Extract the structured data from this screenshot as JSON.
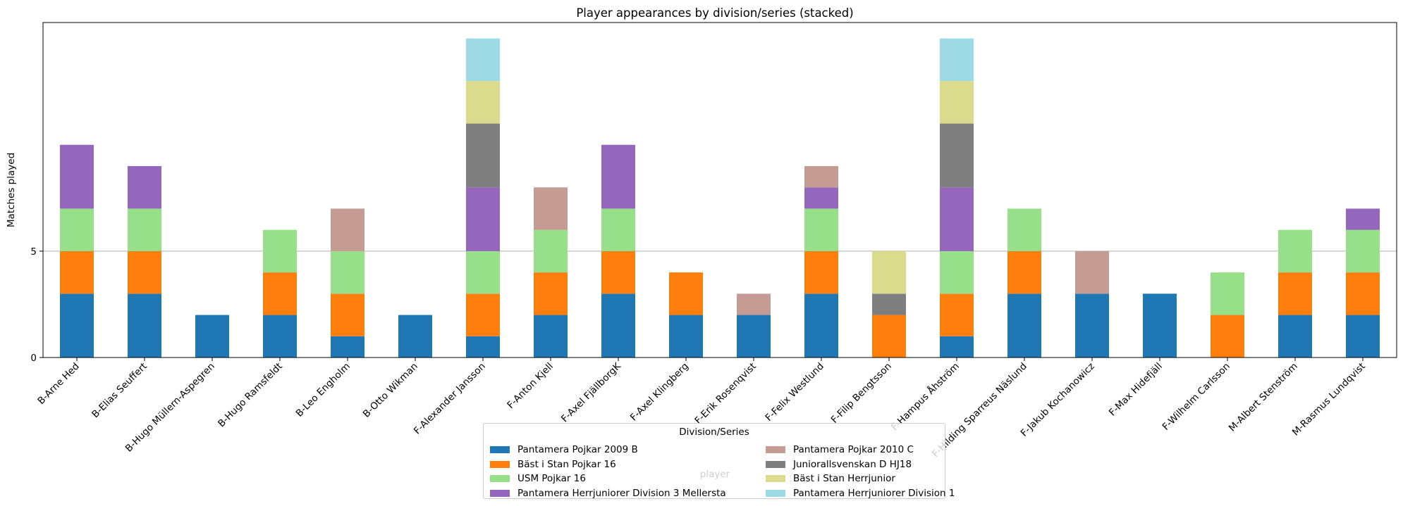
{
  "chart_data": {
    "type": "bar",
    "stacked": true,
    "title": "Player appearances by division/series (stacked)",
    "xlabel": "player",
    "ylabel": "Matches played",
    "ylim": [
      0,
      15.75
    ],
    "yticks": [
      0,
      5
    ],
    "grid": "y",
    "categories": [
      "B-Arne Hed",
      "B-Elias Seuffert",
      "B-Hugo Müllern-Aspegren",
      "B-Hugo Ramsfeldt",
      "B-Leo Engholm",
      "B-Otto Wikman",
      "F-Alexander Jansson",
      "F-Anton Kjell",
      "F-Axel FjällborgK",
      "F-Axel Klingberg",
      "F-Erik Rosenqvist",
      "F-Felix Westlund",
      "F-Filip Bengtsson",
      "F-Hampus Åhström",
      "F-Hilding Sparreus Näslund",
      "F-Jakub Kochanowicz",
      "F-Max Hidefjäll",
      "F-Wilhelm Carlsson",
      "M-Albert Stenström",
      "M-Rasmus Lundqvist"
    ],
    "series": [
      {
        "name": "Pantamera Pojkar 2009 B",
        "color": "#1f77b4",
        "values": [
          3,
          3,
          2,
          2,
          1,
          2,
          1,
          2,
          3,
          2,
          2,
          3,
          0,
          1,
          3,
          3,
          3,
          0,
          2,
          2
        ]
      },
      {
        "name": "Bäst i Stan Pojkar 16",
        "color": "#ff7f0e",
        "values": [
          2,
          2,
          0,
          2,
          2,
          0,
          2,
          2,
          2,
          2,
          0,
          2,
          2,
          2,
          2,
          0,
          0,
          2,
          2,
          2
        ]
      },
      {
        "name": "USM Pojkar 16",
        "color": "#98df8a",
        "values": [
          2,
          2,
          0,
          2,
          2,
          0,
          2,
          2,
          2,
          0,
          0,
          2,
          0,
          2,
          2,
          0,
          0,
          2,
          2,
          2
        ]
      },
      {
        "name": "Pantamera Herrjuniorer Division 3 Mellersta",
        "color": "#9467bd",
        "values": [
          3,
          2,
          0,
          0,
          0,
          0,
          3,
          0,
          3,
          0,
          0,
          1,
          0,
          3,
          0,
          0,
          0,
          0,
          0,
          1
        ]
      },
      {
        "name": "Pantamera Pojkar 2010 C",
        "color": "#c49c94",
        "values": [
          0,
          0,
          0,
          0,
          2,
          0,
          0,
          2,
          0,
          0,
          1,
          1,
          0,
          0,
          0,
          2,
          0,
          0,
          0,
          0
        ]
      },
      {
        "name": "Juniorallsvenskan D HJ18",
        "color": "#7f7f7f",
        "values": [
          0,
          0,
          0,
          0,
          0,
          0,
          3,
          0,
          0,
          0,
          0,
          0,
          1,
          3,
          0,
          0,
          0,
          0,
          0,
          0
        ]
      },
      {
        "name": "Bäst i Stan Herrjunior",
        "color": "#dbdb8d",
        "values": [
          0,
          0,
          0,
          0,
          0,
          0,
          2,
          0,
          0,
          0,
          0,
          0,
          2,
          2,
          0,
          0,
          0,
          0,
          0,
          0
        ]
      },
      {
        "name": "Pantamera Herrjuniorer Division 1",
        "color": "#9edae5",
        "values": [
          0,
          0,
          0,
          0,
          0,
          0,
          2,
          0,
          0,
          0,
          0,
          0,
          0,
          2,
          0,
          0,
          0,
          0,
          0,
          0
        ]
      }
    ],
    "legend": {
      "title": "Division/Series",
      "columns": 2,
      "placement": "lower-center"
    }
  }
}
